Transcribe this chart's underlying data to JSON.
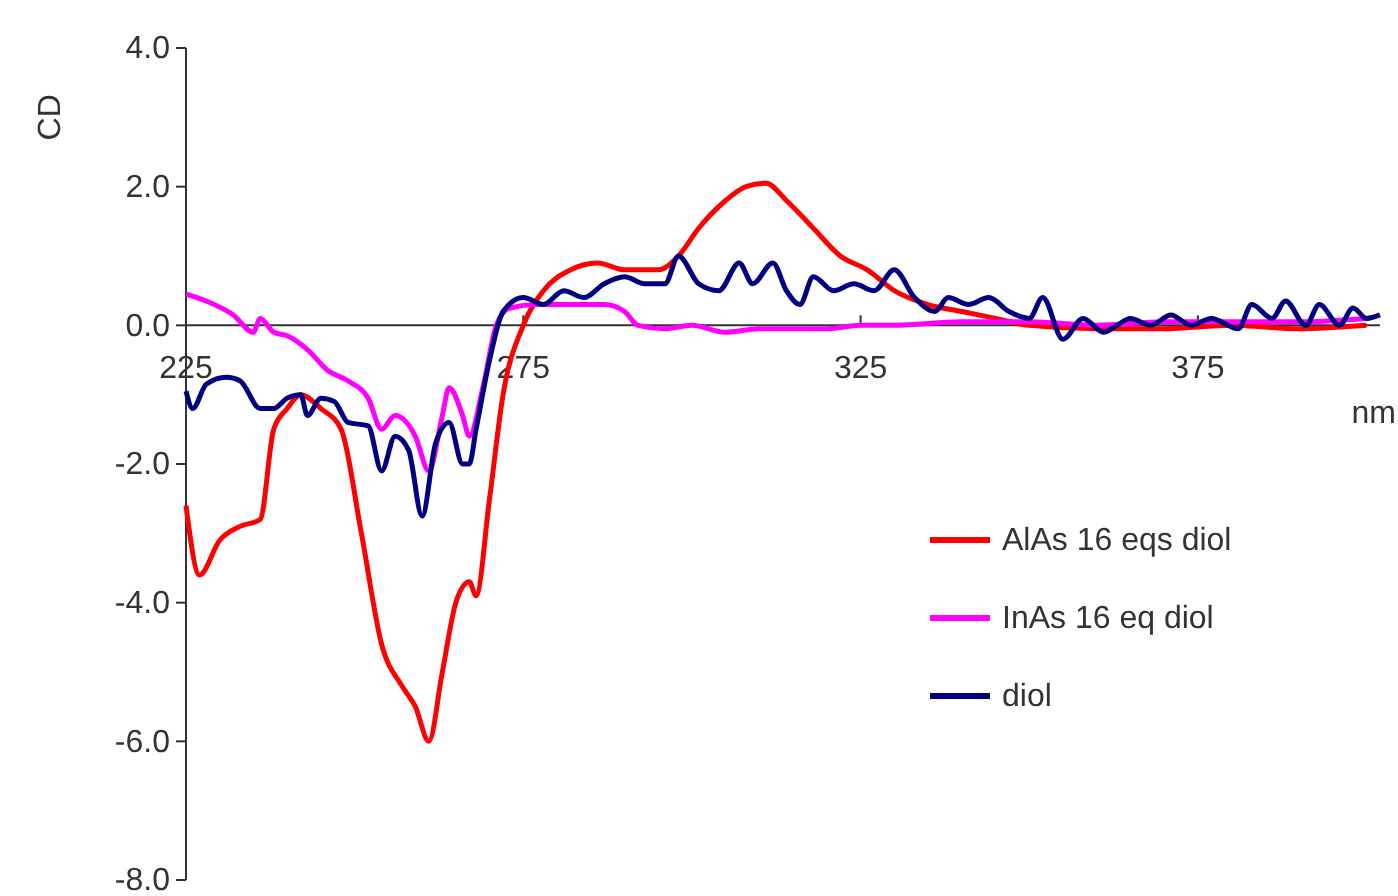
{
  "chart_data": {
    "type": "line",
    "xlabel": "nm",
    "ylabel": "CD",
    "xlim": [
      225,
      402
    ],
    "ylim": [
      -8,
      4
    ],
    "xticks": [
      225,
      275,
      325,
      375
    ],
    "yticks": [
      {
        "value": -8,
        "label": "-8.0"
      },
      {
        "value": -6,
        "label": "-6.0"
      },
      {
        "value": -4,
        "label": "-4.0"
      },
      {
        "value": -2,
        "label": "-2.0"
      },
      {
        "value": 0,
        "label": "0.0"
      },
      {
        "value": 2,
        "label": "2.0"
      },
      {
        "value": 4,
        "label": "4.0"
      }
    ],
    "grid": false,
    "legend": "right",
    "marker": "none",
    "line_style": "solid",
    "series": [
      {
        "name": "AlAs 16 eqs diol",
        "color": "#ff0000",
        "x": [
          225,
          227,
          230,
          233,
          236,
          238,
          240,
          242,
          245,
          248,
          251,
          254,
          257,
          259,
          261,
          263,
          265,
          267,
          268,
          270,
          272,
          275,
          278,
          282,
          286,
          290,
          295,
          298,
          301,
          305,
          308,
          311,
          314,
          318,
          322,
          326,
          330,
          335,
          340,
          345,
          350,
          360,
          370,
          380,
          390,
          400
        ],
        "values": [
          -2.6,
          -3.6,
          -3.1,
          -2.9,
          -2.8,
          -1.5,
          -1.2,
          -1.0,
          -1.2,
          -1.5,
          -3.0,
          -4.6,
          -5.2,
          -5.5,
          -6.0,
          -5.0,
          -4.0,
          -3.7,
          -3.9,
          -2.5,
          -1.0,
          0.0,
          0.5,
          0.8,
          0.9,
          0.8,
          0.8,
          1.0,
          1.4,
          1.8,
          2.0,
          2.05,
          1.8,
          1.4,
          1.0,
          0.8,
          0.5,
          0.3,
          0.2,
          0.1,
          0.0,
          -0.05,
          -0.05,
          0.0,
          -0.05,
          0.0
        ]
      },
      {
        "name": "InAs 16 eq diol",
        "color": "#ff00ff",
        "x": [
          225,
          228,
          232,
          235,
          236,
          238,
          240,
          243,
          246,
          249,
          252,
          254,
          256,
          259,
          261,
          263,
          264,
          266,
          267,
          269,
          271,
          273,
          277,
          282,
          287,
          290,
          292,
          296,
          300,
          305,
          310,
          315,
          320,
          325,
          330,
          340,
          350,
          360,
          370,
          380,
          390,
          400
        ],
        "values": [
          0.45,
          0.35,
          0.15,
          -0.1,
          0.1,
          -0.1,
          -0.15,
          -0.35,
          -0.65,
          -0.8,
          -1.05,
          -1.5,
          -1.3,
          -1.6,
          -2.1,
          -1.3,
          -0.9,
          -1.3,
          -1.6,
          -0.9,
          0.0,
          0.25,
          0.3,
          0.3,
          0.3,
          0.2,
          0.0,
          -0.05,
          0.0,
          -0.1,
          -0.05,
          -0.05,
          -0.05,
          0.0,
          0.0,
          0.05,
          0.05,
          0.0,
          0.05,
          0.05,
          0.05,
          0.1
        ]
      },
      {
        "name": "diol",
        "color": "#000080",
        "x": [
          225,
          226,
          228,
          231,
          233,
          236,
          238,
          240,
          242,
          243,
          245,
          247,
          249,
          252,
          254,
          256,
          258,
          260,
          262,
          264,
          266,
          267,
          268,
          270,
          272,
          275,
          278,
          281,
          284,
          287,
          290,
          293,
          296,
          298,
          301,
          304,
          307,
          309,
          312,
          314,
          316,
          318,
          321,
          324,
          327,
          330,
          333,
          336,
          338,
          341,
          344,
          347,
          350,
          352,
          355,
          358,
          361,
          363,
          365,
          368,
          371,
          374,
          377,
          381,
          383,
          386,
          388,
          391,
          393,
          396,
          398,
          400,
          402
        ],
        "values": [
          -0.95,
          -1.2,
          -0.85,
          -0.75,
          -0.8,
          -1.2,
          -1.2,
          -1.05,
          -1.0,
          -1.3,
          -1.05,
          -1.1,
          -1.4,
          -1.45,
          -2.1,
          -1.6,
          -1.8,
          -2.75,
          -1.7,
          -1.4,
          -2.0,
          -2.0,
          -1.5,
          -0.5,
          0.2,
          0.4,
          0.3,
          0.5,
          0.4,
          0.6,
          0.7,
          0.6,
          0.6,
          1.0,
          0.6,
          0.5,
          0.9,
          0.6,
          0.9,
          0.5,
          0.3,
          0.7,
          0.5,
          0.6,
          0.5,
          0.8,
          0.4,
          0.2,
          0.4,
          0.3,
          0.4,
          0.2,
          0.1,
          0.4,
          -0.2,
          0.1,
          -0.1,
          0.0,
          0.1,
          0.0,
          0.15,
          0.0,
          0.1,
          -0.05,
          0.3,
          0.1,
          0.35,
          0.0,
          0.3,
          0.0,
          0.25,
          0.1,
          0.15
        ]
      }
    ]
  }
}
